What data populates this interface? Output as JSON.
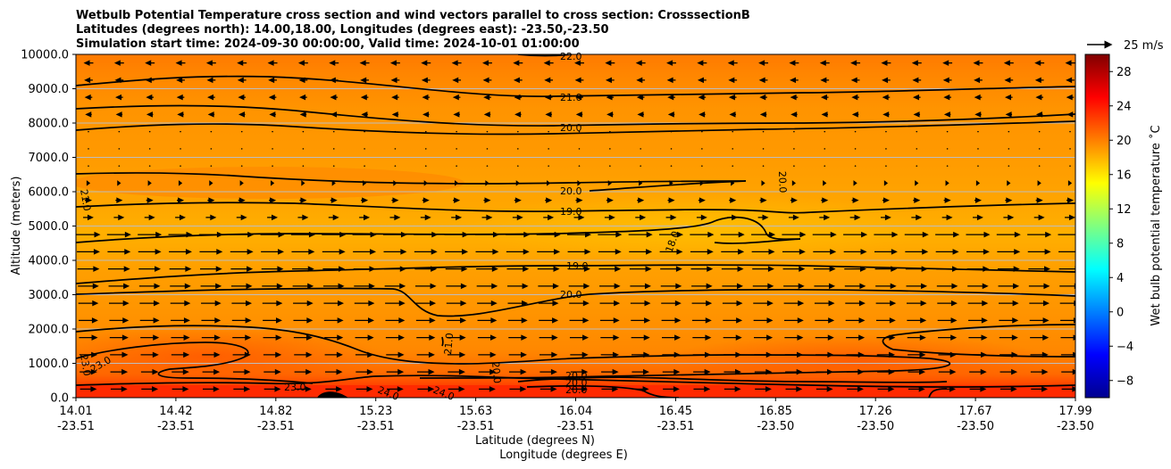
{
  "chart_data": {
    "type": "heatmap",
    "title_lines": [
      "Wetbulb Potential Temperature cross section and wind vectors parallel to cross section: CrosssectionB",
      "Latitudes (degrees north): 14.00,18.00, Longitudes (degrees east): -23.50,-23.50",
      "Simulation start time: 2024-09-30 00:00:00, Valid time: 2024-10-01 01:00:00"
    ],
    "ylabel": "Altitude (meters)",
    "xlabel_lat": "Latitude (degrees N)",
    "xlabel_lon": "Longitude (degrees E)",
    "ylim": [
      0,
      10000
    ],
    "yticks": [
      "0.0",
      "1000.0",
      "2000.0",
      "3000.0",
      "4000.0",
      "5000.0",
      "6000.0",
      "7000.0",
      "8000.0",
      "9000.0",
      "10000.0"
    ],
    "xticks": [
      {
        "lat": "14.01",
        "lon": "-23.51"
      },
      {
        "lat": "14.42",
        "lon": "-23.51"
      },
      {
        "lat": "14.82",
        "lon": "-23.51"
      },
      {
        "lat": "15.23",
        "lon": "-23.51"
      },
      {
        "lat": "15.63",
        "lon": "-23.51"
      },
      {
        "lat": "16.04",
        "lon": "-23.51"
      },
      {
        "lat": "16.45",
        "lon": "-23.51"
      },
      {
        "lat": "16.85",
        "lon": "-23.50"
      },
      {
        "lat": "17.26",
        "lon": "-23.50"
      },
      {
        "lat": "17.67",
        "lon": "-23.50"
      },
      {
        "lat": "17.99",
        "lon": "-23.50"
      }
    ],
    "grid": "horizontal",
    "colorbar": {
      "label": "Wet bulb potential temperature $^\\circ$C",
      "label_text": "Wet bulb potential temperature ˚C",
      "range": [
        -10,
        30
      ],
      "ticks": [
        "−8",
        "−4",
        "0",
        "4",
        "8",
        "12",
        "16",
        "20",
        "24",
        "28"
      ],
      "colormap": "jet"
    },
    "wind_key": {
      "label": "25 m/s"
    },
    "contour_labels": [
      "22.0",
      "21.0",
      "20.0",
      "20.0",
      "19.0",
      "18.0",
      "20.0",
      "19.0",
      "20.0",
      "21.0",
      "23.0",
      "23.0",
      "23.0",
      "24.0",
      "24.0",
      "20.0",
      "20.0",
      "20.0",
      "21.0",
      "20.0"
    ],
    "profile": [
      {
        "alt": 0,
        "theta": 24
      },
      {
        "alt": 500,
        "theta": 21.5
      },
      {
        "alt": 2000,
        "theta": 21.2
      },
      {
        "alt": 3500,
        "theta": 19.5
      },
      {
        "alt": 4500,
        "theta": 18.6
      },
      {
        "alt": 6000,
        "theta": 19.7
      },
      {
        "alt": 8000,
        "theta": 20.2
      },
      {
        "alt": 10000,
        "theta": 22.2
      }
    ]
  }
}
